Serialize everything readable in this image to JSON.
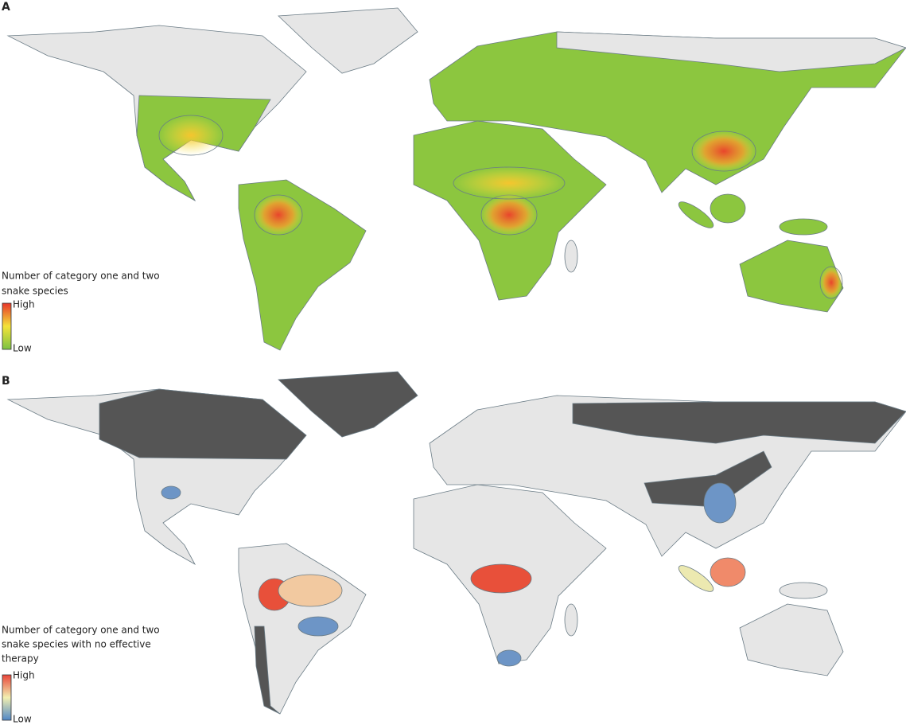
{
  "panels": [
    {
      "label": "A",
      "legend": {
        "title_lines": [
          "Number of category one and two",
          "snake species"
        ],
        "high": "High",
        "low": "Low"
      }
    },
    {
      "label": "B",
      "legend": {
        "title_lines": [
          "Number of category one and two",
          "snake species with no effective",
          "therapy"
        ],
        "high": "High",
        "low": "Low"
      }
    }
  ]
}
